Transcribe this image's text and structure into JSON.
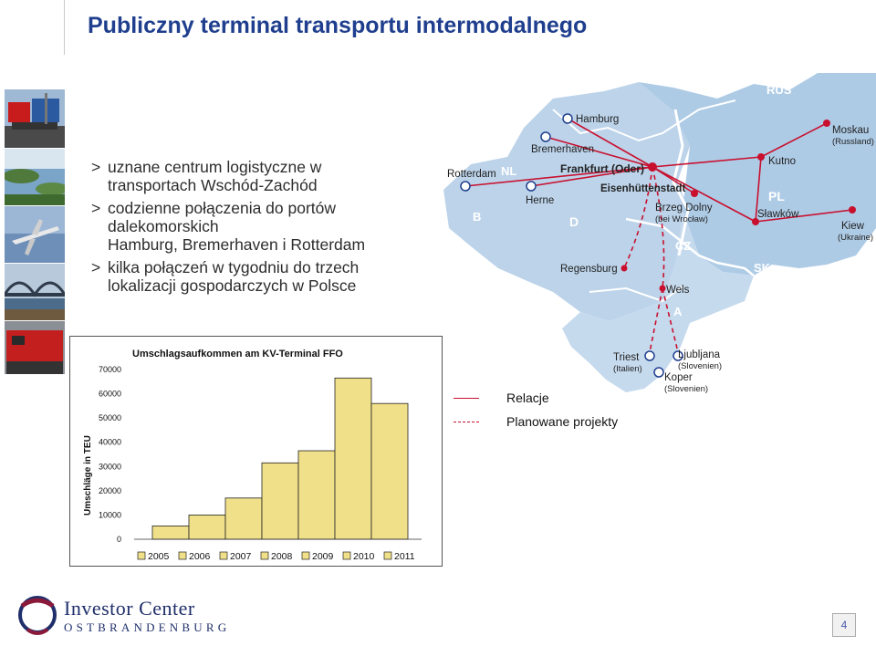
{
  "slide": {
    "title": "Publiczny terminal transportu intermodalnego",
    "page_number": "4"
  },
  "bullets": [
    {
      "marker": ">",
      "text": "uznane centrum logistyczne w\ntransportach Wschód-Zachód"
    },
    {
      "marker": ">",
      "text": "codzienne połączenia do portów\ndalekomorskich\nHamburg, Bremerhaven i Rotterdam"
    },
    {
      "marker": ">",
      "text": "kilka połączeń w tygodniu do trzech\nlokalizacji gospodarczych w Polsce"
    }
  ],
  "map": {
    "countries": [
      "NL",
      "B",
      "D",
      "CZ",
      "A",
      "PL",
      "SK",
      "RUS"
    ],
    "cities": {
      "hamburg": "Hamburg",
      "bremerhaven": "Bremerhaven",
      "rotterdam": "Rotterdam",
      "herne": "Herne",
      "frankfurt": "Frankfurt (Oder)",
      "eisenhuettenstadt": "Eisenhüttenstadt",
      "brzeg": "Brzeg Dolny",
      "brzeg_sub": "(bei Wrocław)",
      "kutno": "Kutno",
      "slawkow": "Sławków",
      "moskau": "Moskau",
      "moskau_sub": "(Russland)",
      "kiew": "Kiew",
      "kiew_sub": "(Ukraine)",
      "regensburg": "Regensburg",
      "wels": "Wels",
      "triest": "Triest",
      "triest_sub": "(Italien)",
      "ljubljana": "Ljubljana",
      "ljubljana_sub": "(Slovenien)",
      "koper": "Koper",
      "koper_sub": "(Slovenien)"
    },
    "route_color": "#c8102e",
    "land_color": "#bcd3ea"
  },
  "legend": {
    "relations": "Relacje",
    "planned": "Planowane projekty"
  },
  "chart_data": {
    "type": "bar",
    "title": "Umschlagsaufkommen am KV-Terminal FFO",
    "ylabel": "Umschläge in TEU",
    "xlabel": "",
    "categories": [
      "2005",
      "2006",
      "2007",
      "2008",
      "2009",
      "2010",
      "2011"
    ],
    "values": [
      5500,
      10000,
      17000,
      31500,
      36500,
      66500,
      56000
    ],
    "ylim": [
      0,
      70000
    ],
    "yticks": [
      "0",
      "10000",
      "20000",
      "30000",
      "40000",
      "50000",
      "60000",
      "70000"
    ],
    "bar_color": "#f1e08a",
    "legend_position": "bottom",
    "grid": false
  },
  "logo": {
    "line1": "Investor Center",
    "line2": "OSTBRANDENBURG"
  }
}
